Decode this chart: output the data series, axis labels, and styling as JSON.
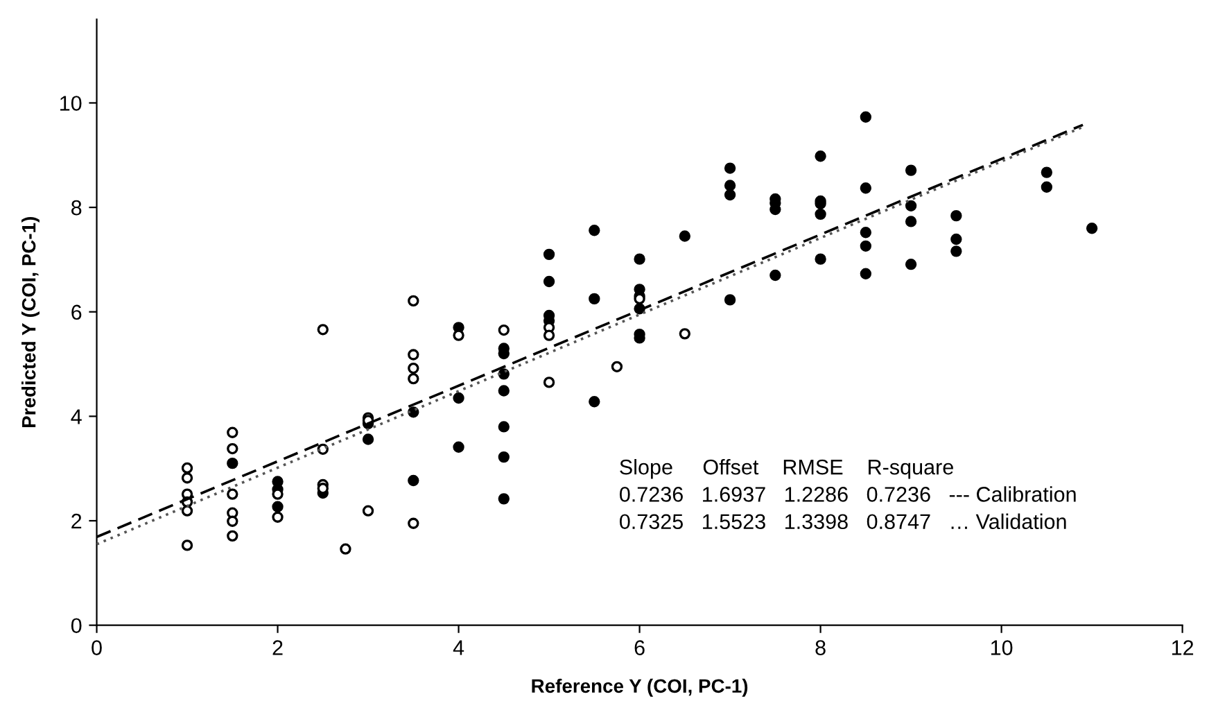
{
  "chart_data": {
    "type": "scatter",
    "xlabel": "Reference Y (COI, PC-1)",
    "ylabel": "Predicted Y (COI, PC-1)",
    "xlim": [
      0,
      12
    ],
    "xticks": [
      0,
      2,
      4,
      6,
      8,
      10,
      12
    ],
    "ylim": [
      0,
      11.6
    ],
    "yticks": [
      0,
      2,
      4,
      6,
      8,
      10
    ],
    "grid": false,
    "legend": false,
    "marker": "circle",
    "series": [
      {
        "color": "#000000",
        "x": [
          1.5,
          2,
          2,
          2,
          2.5,
          3,
          3,
          3.5,
          3.5,
          4,
          4,
          4,
          4.5,
          4.5,
          4.5,
          4.5,
          4.5,
          4.5,
          4.5,
          5,
          5,
          5,
          5,
          5.5,
          5.5,
          5.5,
          6,
          6,
          6,
          6,
          6,
          6,
          6.5,
          7,
          7,
          7,
          7,
          7.5,
          7.5,
          7.5,
          7.5,
          8,
          8,
          8,
          8,
          8,
          8.5,
          8.5,
          8.5,
          8.5,
          8.5,
          9,
          9,
          9,
          9,
          9.5,
          9.5,
          9.5,
          10.5,
          10.5,
          11
        ],
        "values": [
          3.1,
          2.75,
          2.6,
          2.27,
          2.53,
          3.86,
          3.56,
          4.08,
          2.77,
          5.7,
          4.35,
          3.41,
          5.3,
          5.2,
          4.81,
          4.49,
          3.8,
          3.22,
          2.42,
          7.1,
          6.58,
          5.93,
          5.83,
          7.56,
          6.25,
          4.28,
          7.01,
          6.43,
          6.3,
          6.06,
          5.57,
          5.5,
          7.45,
          8.75,
          8.42,
          8.24,
          6.23,
          8.16,
          8.08,
          7.96,
          6.7,
          8.98,
          8.12,
          8.07,
          7.87,
          7.01,
          9.73,
          8.37,
          7.52,
          7.26,
          6.73,
          8.71,
          8.03,
          7.73,
          6.91,
          7.84,
          7.39,
          7.16,
          8.67,
          8.39,
          7.6
        ]
      },
      {
        "color": "#ffffff",
        "x": [
          1,
          1,
          1,
          1,
          1,
          1,
          1.5,
          1.5,
          1.5,
          1.5,
          1.5,
          1.5,
          2,
          2,
          2.5,
          2.5,
          2.5,
          2.5,
          2.75,
          3,
          3,
          3,
          3.5,
          3.5,
          3.5,
          3.5,
          3.5,
          4,
          4.5,
          5,
          5,
          5,
          5.75,
          6,
          6.5
        ],
        "values": [
          3.01,
          2.82,
          2.51,
          2.36,
          2.19,
          1.53,
          3.69,
          3.38,
          2.51,
          2.15,
          1.99,
          1.71,
          2.51,
          2.07,
          5.66,
          3.37,
          2.69,
          2.62,
          1.46,
          3.97,
          3.92,
          2.19,
          6.21,
          5.18,
          4.92,
          4.72,
          1.95,
          5.55,
          5.65,
          5.7,
          5.55,
          4.65,
          4.95,
          6.25,
          5.58
        ]
      },
      {
        "type": "line",
        "marker": "none",
        "color": "#000000",
        "line_style": "dashed",
        "x": [
          0,
          10.9
        ],
        "values": [
          1.69,
          9.58
        ]
      },
      {
        "type": "line",
        "marker": "none",
        "color": "#555555",
        "line_style": "dotted",
        "x": [
          0,
          10.9
        ],
        "values": [
          1.55,
          9.54
        ]
      }
    ],
    "annotations": [
      "Slope     Offset    RMSE    R-square",
      "0.7236   1.6937   1.2286   0.7236   --- Calibration",
      "0.7325   1.5523   1.3398   0.8747   … Validation"
    ]
  }
}
